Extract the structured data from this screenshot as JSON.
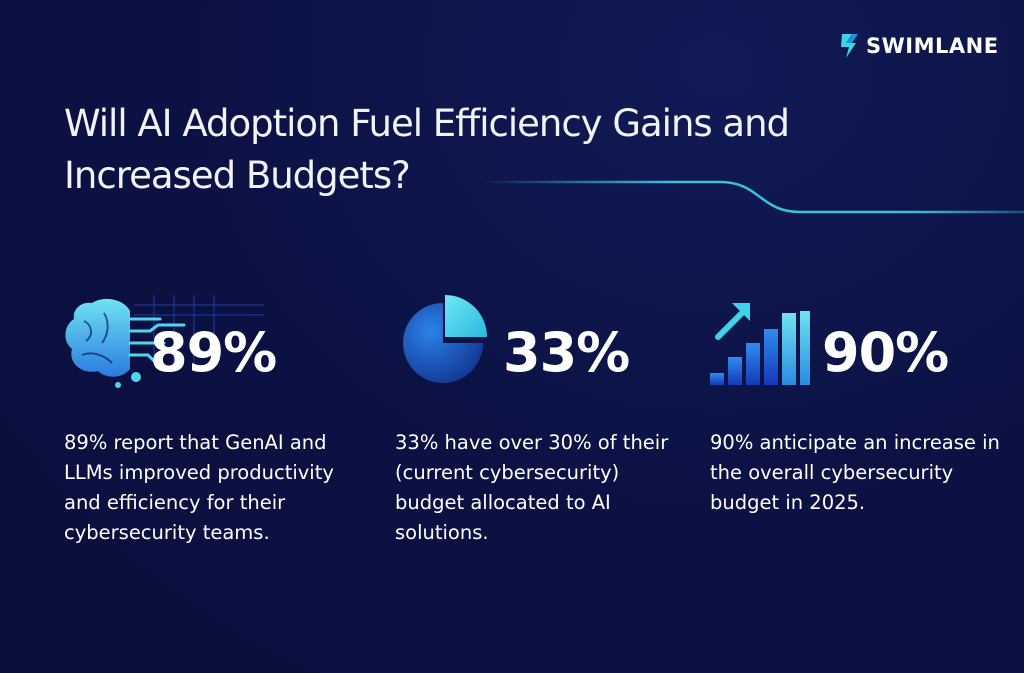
{
  "brand": {
    "name": "SWIMLANE",
    "logo_icon": "swimlane-s-icon",
    "accent": "#3fd3ea"
  },
  "headline": {
    "line1": "Will AI Adoption Fuel Efficiency Gains and",
    "line2": "Increased Budgets?"
  },
  "stats": [
    {
      "value": "89%",
      "icon": "ai-brain-icon",
      "text": "89% report that GenAI and LLMs improved productivity and efficiency for their cybersecurity teams."
    },
    {
      "value": "33%",
      "icon": "pie-chart-icon",
      "text": "33% have over 30% of their (current cybersecurity) budget allocated to AI solutions."
    },
    {
      "value": "90%",
      "icon": "growth-bars-icon",
      "text": "90% anticipate an increase in the overall cybersecurity budget in 2025."
    }
  ],
  "colors": {
    "background": "#0b1142",
    "icon_light": "#4fd6ee",
    "icon_dark": "#1f5fd6"
  }
}
